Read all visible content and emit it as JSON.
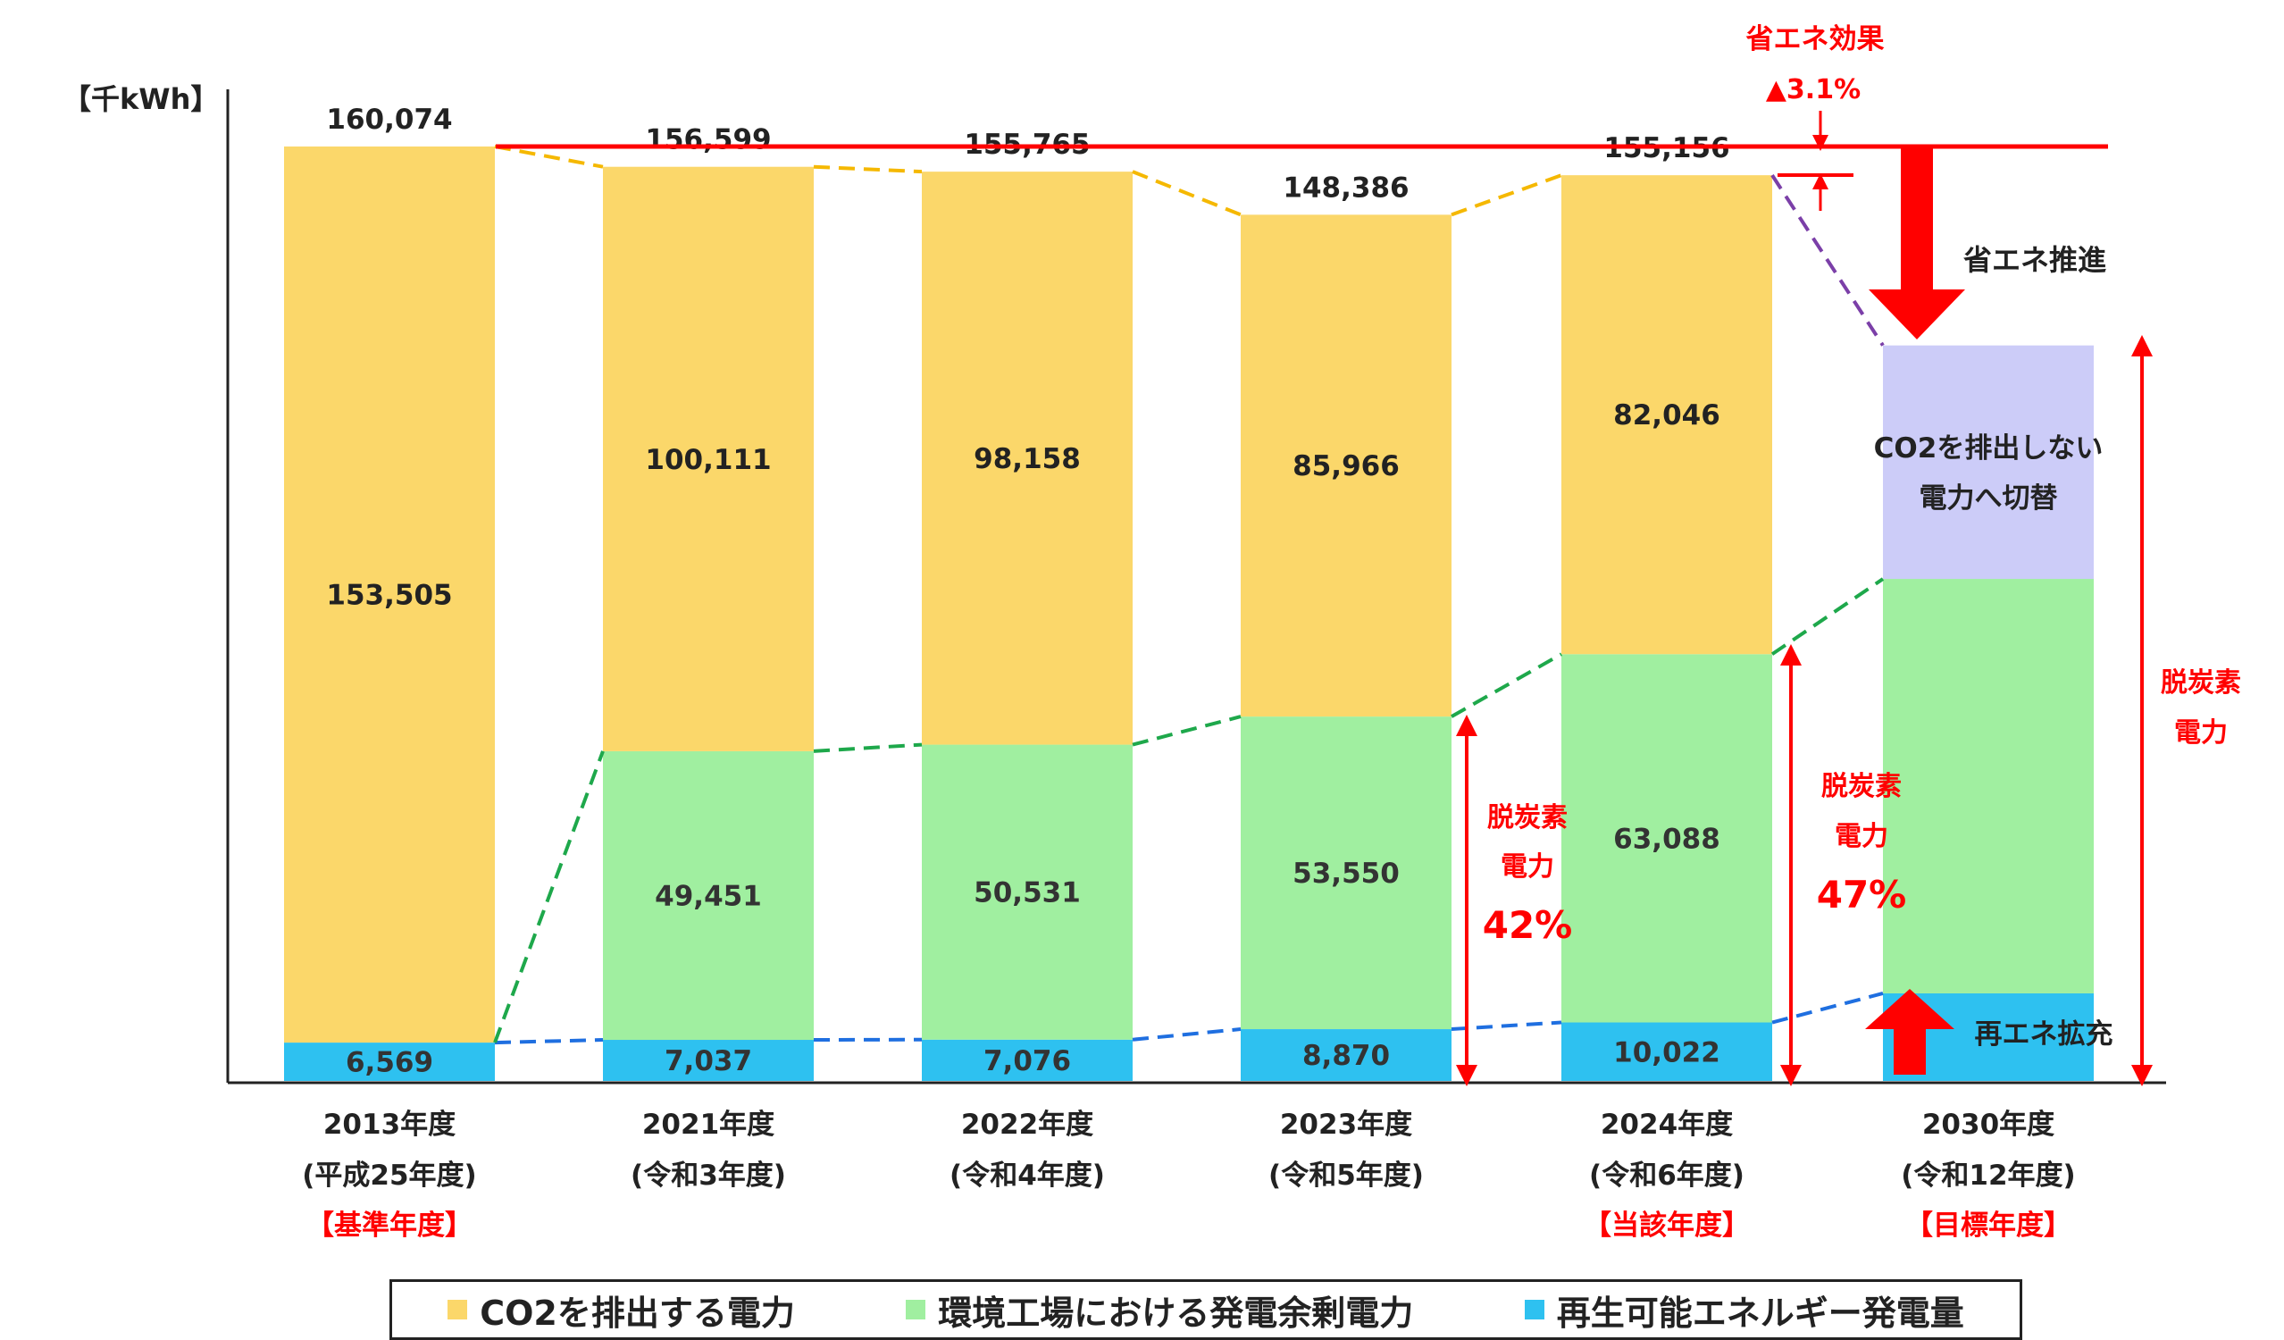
{
  "colors": {
    "co2": "#FBD76A",
    "surplus": "#A0EFA0",
    "renew": "#2EC1F0",
    "switch": "#CCCCF8",
    "red": "#FF0000",
    "dash_yellow": "#F5B800",
    "dash_green": "#1EA84B",
    "dash_blue": "#1F6FE0",
    "dash_purple": "#7B3FA8",
    "text": "#222222"
  },
  "chart_data": {
    "type": "bar",
    "stacked": true,
    "unit_label": "【千kWh】",
    "categories": [
      {
        "year": "2013年度",
        "era": "(平成25年度)",
        "tag": "【基準年度】"
      },
      {
        "year": "2021年度",
        "era": "(令和3年度)",
        "tag": ""
      },
      {
        "year": "2022年度",
        "era": "(令和4年度)",
        "tag": ""
      },
      {
        "year": "2023年度",
        "era": "(令和5年度)",
        "tag": ""
      },
      {
        "year": "2024年度",
        "era": "(令和6年度)",
        "tag": "【当該年度】"
      },
      {
        "year": "2030年度",
        "era": "(令和12年度)",
        "tag": "【目標年度】"
      }
    ],
    "series": [
      {
        "name": "再生可能エネルギー発電量",
        "values": [
          6569,
          7037,
          7076,
          8870,
          10022,
          null
        ],
        "labels": [
          "6,569",
          "7,037",
          "7,076",
          "8,870",
          "10,022",
          ""
        ]
      },
      {
        "name": "環境工場における発電余剰電力",
        "values": [
          0,
          49451,
          50531,
          53550,
          63088,
          null
        ],
        "labels": [
          "",
          "49,451",
          "50,531",
          "53,550",
          "63,088",
          ""
        ]
      },
      {
        "name": "CO2を排出する電力",
        "values": [
          153505,
          100111,
          98158,
          85966,
          82046,
          null
        ],
        "labels": [
          "153,505",
          "100,111",
          "98,158",
          "85,966",
          "82,046",
          ""
        ]
      }
    ],
    "totals": [
      "160,074",
      "156,599",
      "155,765",
      "148,386",
      "155,156",
      ""
    ],
    "total_values": [
      160074,
      156599,
      155765,
      148386,
      155156,
      null
    ],
    "target_2030": {
      "renew": 15000,
      "surplus": 71000,
      "switch": 40000
    },
    "ylim": [
      0,
      160074
    ],
    "legend_position": "bottom"
  },
  "annotations": {
    "shoene_effect_title": "省エネ効果",
    "shoene_effect_value": "▲3.1%",
    "shoene_promote": "省エネ推進",
    "switch_line1": "CO2を排出しない",
    "switch_line2": "電力へ切替",
    "renew_expand": "再エネ拡充",
    "decarb_line1": "脱炭素",
    "decarb_line2": "電力",
    "pct_2023": "42%",
    "pct_2024": "47%"
  },
  "legend": [
    {
      "label": "CO2を排出する電力",
      "color": "#FBD76A"
    },
    {
      "label": "環境工場における発電余剰電力",
      "color": "#A0EFA0"
    },
    {
      "label": "再生可能エネルギー発電量",
      "color": "#2EC1F0"
    }
  ]
}
